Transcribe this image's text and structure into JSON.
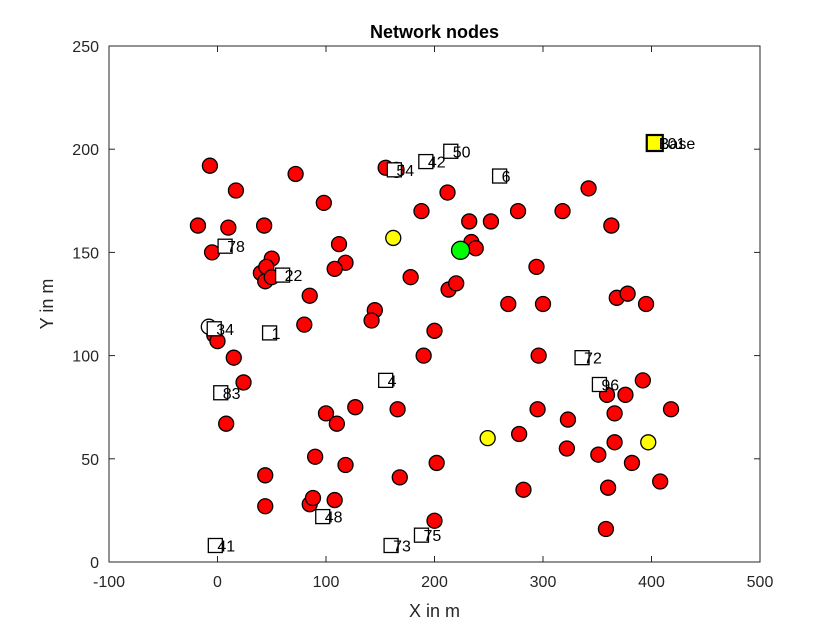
{
  "chart_data": {
    "type": "scatter",
    "title": "Network nodes",
    "xlabel": "X in m",
    "ylabel": "Y in m",
    "xlim": [
      -100,
      500
    ],
    "ylim": [
      0,
      250
    ],
    "xticks": [
      -100,
      0,
      100,
      200,
      300,
      400,
      500
    ],
    "yticks": [
      0,
      50,
      100,
      150,
      200,
      250
    ],
    "grid": false,
    "colors": {
      "normal": "#ff0000",
      "cluster_head": "#ffff00",
      "sink": "#00ff00",
      "base": "#ffff00",
      "unlabeled_square": "#ffffff",
      "edge": "#000000"
    },
    "series": [
      {
        "marker": "circle",
        "color": "#ff0000",
        "points": [
          [
            -7,
            192
          ],
          [
            17,
            180
          ],
          [
            72,
            188
          ],
          [
            98,
            174
          ],
          [
            -18,
            163
          ],
          [
            10,
            162
          ],
          [
            43,
            163
          ],
          [
            -5,
            150
          ],
          [
            50,
            147
          ],
          [
            40,
            140
          ],
          [
            45,
            143
          ],
          [
            44,
            136
          ],
          [
            50,
            138
          ],
          [
            85,
            129
          ],
          [
            112,
            154
          ],
          [
            118,
            145
          ],
          [
            108,
            142
          ],
          [
            80,
            115
          ],
          [
            145,
            122
          ],
          [
            142,
            117
          ],
          [
            155,
            191
          ],
          [
            165,
            190
          ],
          [
            188,
            170
          ],
          [
            212,
            179
          ],
          [
            232,
            165
          ],
          [
            252,
            165
          ],
          [
            234,
            155
          ],
          [
            238,
            152
          ],
          [
            178,
            138
          ],
          [
            213,
            132
          ],
          [
            220,
            135
          ],
          [
            200,
            112
          ],
          [
            190,
            100
          ],
          [
            277,
            170
          ],
          [
            318,
            170
          ],
          [
            342,
            181
          ],
          [
            363,
            163
          ],
          [
            294,
            143
          ],
          [
            268,
            125
          ],
          [
            300,
            125
          ],
          [
            368,
            128
          ],
          [
            378,
            130
          ],
          [
            395,
            125
          ],
          [
            -3,
            110
          ],
          [
            0,
            107
          ],
          [
            15,
            99
          ],
          [
            24,
            87
          ],
          [
            8,
            67
          ],
          [
            100,
            72
          ],
          [
            110,
            67
          ],
          [
            127,
            75
          ],
          [
            166,
            74
          ],
          [
            90,
            51
          ],
          [
            118,
            47
          ],
          [
            44,
            42
          ],
          [
            44,
            27
          ],
          [
            85,
            28
          ],
          [
            88,
            31
          ],
          [
            108,
            30
          ],
          [
            168,
            41
          ],
          [
            202,
            48
          ],
          [
            200,
            20
          ],
          [
            296,
            100
          ],
          [
            295,
            74
          ],
          [
            323,
            69
          ],
          [
            278,
            62
          ],
          [
            322,
            55
          ],
          [
            282,
            35
          ],
          [
            359,
            81
          ],
          [
            376,
            81
          ],
          [
            392,
            88
          ],
          [
            418,
            74
          ],
          [
            366,
            72
          ],
          [
            366,
            58
          ],
          [
            351,
            52
          ],
          [
            382,
            48
          ],
          [
            408,
            39
          ],
          [
            360,
            36
          ],
          [
            358,
            16
          ]
        ]
      },
      {
        "marker": "circle",
        "color": "#ffff00",
        "points": [
          [
            162,
            157
          ],
          [
            249,
            60
          ],
          [
            397,
            58
          ]
        ]
      },
      {
        "marker": "circle",
        "color": "#00ff00",
        "size": "large",
        "points": [
          [
            224,
            151
          ]
        ]
      },
      {
        "marker": "circle",
        "color": "#ffffff",
        "points": [
          [
            -8,
            114
          ]
        ]
      },
      {
        "marker": "square",
        "color": "#ffffff",
        "points": [
          [
            163,
            190
          ],
          [
            192,
            194
          ],
          [
            215,
            199
          ],
          [
            260,
            187
          ],
          [
            7,
            153
          ],
          [
            60,
            139
          ],
          [
            -3,
            113
          ],
          [
            48,
            111
          ],
          [
            155,
            88
          ],
          [
            336,
            99
          ],
          [
            352,
            86
          ],
          [
            3,
            82
          ],
          [
            97,
            22
          ],
          [
            160,
            8
          ],
          [
            188,
            13
          ],
          [
            -2,
            8
          ]
        ],
        "labels": [
          "54",
          "42",
          "50",
          "6",
          "78",
          "22",
          "34",
          "1",
          "4",
          "72",
          "96",
          "83",
          "48",
          "73",
          "75",
          "41"
        ]
      },
      {
        "marker": "square",
        "color": "#ffff00",
        "size": "large",
        "points": [
          [
            403,
            203
          ]
        ]
      }
    ],
    "annotations": [
      {
        "text": "Base",
        "x": 403,
        "y": 203
      },
      {
        "text": "101",
        "x": 403,
        "y": 203
      }
    ]
  }
}
